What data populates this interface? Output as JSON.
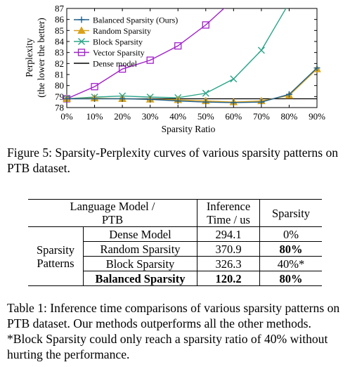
{
  "figure": {
    "caption": "Figure 5: Sparsity-Perplexity curves of various sparsity patterns on PTB dataset."
  },
  "chart_data": {
    "type": "line",
    "xlabel": "Sparsity Ratio",
    "ylabel": "Perplexity",
    "ylabel2": "(the lower the better)",
    "x_ticks": [
      "0%",
      "10%",
      "20%",
      "30%",
      "40%",
      "50%",
      "60%",
      "70%",
      "80%",
      "90%"
    ],
    "y_ticks": [
      "78",
      "79",
      "80",
      "81",
      "82",
      "83",
      "84",
      "85",
      "86",
      "87"
    ],
    "x": [
      0,
      10,
      20,
      30,
      40,
      50,
      60,
      70,
      80,
      90
    ],
    "xlim": [
      0,
      90
    ],
    "ylim": [
      78,
      87
    ],
    "legend_position": "top-left",
    "series": [
      {
        "name": "Balanced Sparsity (Ours)",
        "marker": "plus",
        "color": "#1f5f8b",
        "values": [
          78.8,
          78.8,
          78.8,
          78.75,
          78.6,
          78.5,
          78.45,
          78.5,
          79.2,
          81.6
        ]
      },
      {
        "name": "Random Sparsity",
        "marker": "triangle",
        "color": "#d9a21b",
        "values": [
          78.8,
          78.85,
          78.8,
          78.75,
          78.7,
          78.6,
          78.5,
          78.6,
          79.1,
          81.5
        ]
      },
      {
        "name": "Block Sparsity",
        "marker": "cross",
        "color": "#2aa58a",
        "values": [
          78.8,
          78.95,
          79.05,
          78.95,
          78.9,
          79.3,
          80.6,
          83.2,
          87.5,
          null
        ]
      },
      {
        "name": "Vector Sparsity",
        "marker": "square",
        "color": "#a020c8",
        "values": [
          78.8,
          79.9,
          81.5,
          82.3,
          83.6,
          85.5,
          87.8,
          null,
          null,
          null
        ]
      },
      {
        "name": "Dense model",
        "marker": "none",
        "color": "#000000",
        "values": [
          78.8,
          78.8,
          78.8,
          78.8,
          78.8,
          78.8,
          78.8,
          78.8,
          78.8,
          78.8
        ]
      }
    ]
  },
  "table": {
    "header": {
      "col1": "Language Model /",
      "col1b": "PTB",
      "col2": "Inference",
      "col2b": "Time / us",
      "col3": "Sparsity"
    },
    "group_label": "Sparsity",
    "group_label2": "Patterns",
    "rows": [
      {
        "name": "Dense Model",
        "time": "294.1",
        "sparsity": "0%"
      },
      {
        "name": "Random Sparsity",
        "time": "370.9",
        "sparsity": "80%"
      },
      {
        "name": "Block Sparsity",
        "time": "326.3",
        "sparsity": "40%*"
      },
      {
        "name": "Balanced Sparsity",
        "time": "120.2",
        "sparsity": "80%"
      }
    ],
    "caption": "Table 1: Inference time comparisons of various sparsity patterns on PTB dataset. Our methods outperforms all the other methods. *Block Sparsity could only reach a sparsity ratio of 40% without hurting the performance."
  }
}
